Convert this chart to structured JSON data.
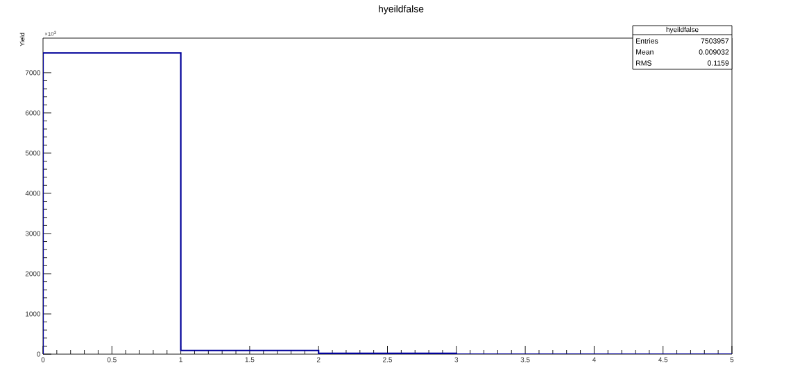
{
  "chart_data": {
    "type": "histogram",
    "title": "hyeildfalse",
    "ylabel": "Yield",
    "bins": [
      0,
      1,
      2,
      3,
      4,
      5
    ],
    "values": [
      7490,
      90,
      20,
      0,
      0
    ],
    "color": "#000099",
    "xlim": [
      0,
      5
    ],
    "xticks": [
      0,
      0.5,
      1,
      1.5,
      2,
      2.5,
      3,
      3.5,
      4,
      4.5,
      5
    ],
    "ylim": [
      0,
      7860
    ],
    "yticks": [
      0,
      1000,
      2000,
      3000,
      4000,
      5000,
      6000,
      7000
    ],
    "annotations": [
      "×10$^{3}$",
      "hyeildfalse",
      "Entries",
      "7503957",
      "Mean",
      "0.009032",
      "RMS",
      "0.1159"
    ]
  }
}
